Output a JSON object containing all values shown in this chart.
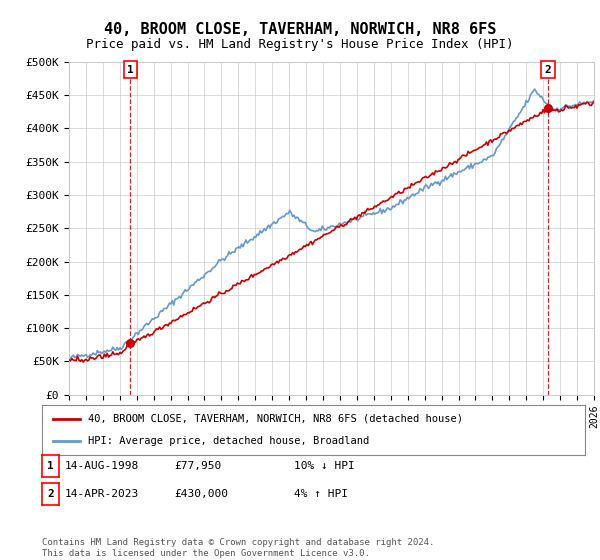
{
  "title": "40, BROOM CLOSE, TAVERHAM, NORWICH, NR8 6FS",
  "subtitle": "Price paid vs. HM Land Registry's House Price Index (HPI)",
  "ylim": [
    0,
    500000
  ],
  "yticks": [
    0,
    50000,
    100000,
    150000,
    200000,
    250000,
    300000,
    350000,
    400000,
    450000,
    500000
  ],
  "ytick_labels": [
    "£0",
    "£50K",
    "£100K",
    "£150K",
    "£200K",
    "£250K",
    "£300K",
    "£350K",
    "£400K",
    "£450K",
    "£500K"
  ],
  "sale1_date": 1998.62,
  "sale1_price": 77950,
  "sale1_label": "1",
  "sale2_date": 2023.29,
  "sale2_price": 430000,
  "sale2_label": "2",
  "hpi_color": "#6699cc",
  "price_color": "#cc0000",
  "background_color": "#ffffff",
  "grid_color": "#cccccc",
  "legend_line1": "40, BROOM CLOSE, TAVERHAM, NORWICH, NR8 6FS (detached house)",
  "legend_line2": "HPI: Average price, detached house, Broadland",
  "ann1_date": "14-AUG-1998",
  "ann1_price": "£77,950",
  "ann1_hpi": "10% ↓ HPI",
  "ann2_date": "14-APR-2023",
  "ann2_price": "£430,000",
  "ann2_hpi": "4% ↑ HPI",
  "footer": "Contains HM Land Registry data © Crown copyright and database right 2024.\nThis data is licensed under the Open Government Licence v3.0.",
  "n_points": 372
}
